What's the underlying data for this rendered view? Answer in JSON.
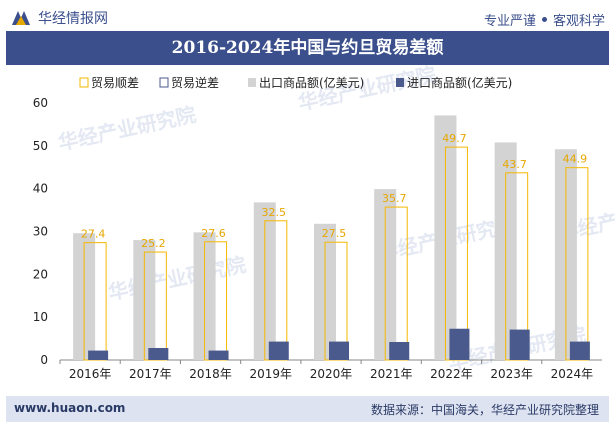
{
  "header": {
    "brand": "华经情报网",
    "slogan_a": "专业严谨",
    "slogan_b": "客观科学"
  },
  "footer": {
    "website": "www.huaon.com",
    "source": "数据来源：中国海关，华经产业研究院整理"
  },
  "watermark": "华经产业研究院",
  "colors": {
    "exports": "#d3d3d3",
    "imports": "#4a5a8c",
    "surplus_line": "#f5b800",
    "deficit_line": "#4a5a8c",
    "title_bg": "#3b4f8c"
  },
  "chart_data": {
    "type": "bar",
    "title": "2016-2024年中国与约旦贸易差额",
    "categories": [
      "2016年",
      "2017年",
      "2018年",
      "2019年",
      "2020年",
      "2021年",
      "2022年",
      "2023年",
      "2024年"
    ],
    "series": [
      {
        "name": "贸易顺差",
        "values": [
          27.4,
          25.2,
          27.6,
          32.5,
          27.5,
          35.7,
          49.7,
          43.7,
          44.9
        ]
      },
      {
        "name": "贸易逆差",
        "values": [
          0,
          0,
          0,
          0,
          0,
          0,
          0,
          0,
          0
        ]
      },
      {
        "name": "出口商品额(亿美元)",
        "values": [
          29.6,
          28.0,
          29.8,
          36.8,
          31.8,
          39.9,
          57.1,
          50.8,
          49.2
        ]
      },
      {
        "name": "进口商品额(亿美元)",
        "values": [
          2.2,
          2.8,
          2.2,
          4.3,
          4.3,
          4.2,
          7.3,
          7.1,
          4.3
        ]
      }
    ],
    "ylim": [
      0,
      60
    ],
    "yticks": [
      "0",
      "10",
      "20",
      "30",
      "40",
      "50",
      "60"
    ],
    "legend_position": "top-right",
    "grid": false
  }
}
